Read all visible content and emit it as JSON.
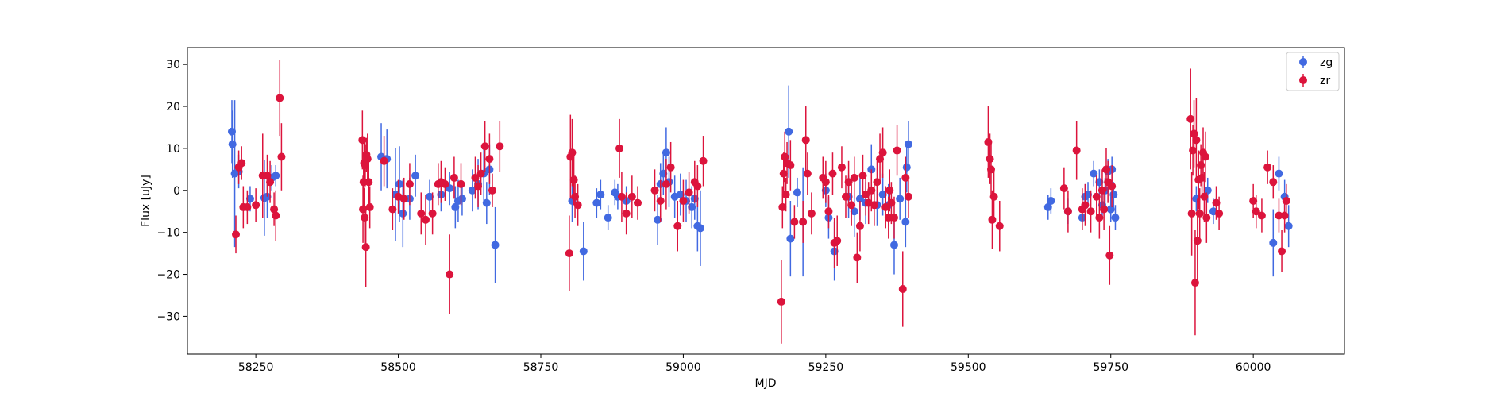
{
  "chart_data": {
    "type": "scatter",
    "title": "",
    "xlabel": "MJD",
    "ylabel": "Flux [uJy]",
    "xlim": [
      58130,
      60160
    ],
    "ylim": [
      -39,
      34
    ],
    "xticks": [
      58250,
      58500,
      58750,
      59000,
      59250,
      59500,
      59750,
      60000
    ],
    "yticks": [
      -30,
      -20,
      -10,
      0,
      10,
      20,
      30
    ],
    "xtick_labels": [
      "58250",
      "58500",
      "58750",
      "59000",
      "59250",
      "59500",
      "59750",
      "60000"
    ],
    "ytick_labels": [
      "−30",
      "−20",
      "−10",
      "0",
      "10",
      "20",
      "30"
    ],
    "grid": false,
    "legend_position": "top-right",
    "series": [
      {
        "name": "zg",
        "color": "#4169e1",
        "points": [
          [
            58208,
            14,
            7.5
          ],
          [
            58209,
            11,
            8
          ],
          [
            58213,
            4,
            17.5
          ],
          [
            58220,
            4.5,
            4
          ],
          [
            58240,
            -2,
            3
          ],
          [
            58265,
            -1.8,
            9
          ],
          [
            58270,
            -1.5,
            5
          ],
          [
            58278,
            3,
            3
          ],
          [
            58285,
            3.5,
            2.5
          ],
          [
            58470,
            8,
            8
          ],
          [
            58480,
            7.5,
            7
          ],
          [
            58495,
            -1,
            11
          ],
          [
            58502,
            1.5,
            9
          ],
          [
            58508,
            -5.5,
            8
          ],
          [
            58520,
            -2,
            5
          ],
          [
            58530,
            3.5,
            5
          ],
          [
            58555,
            -1.5,
            4
          ],
          [
            58575,
            -1,
            4
          ],
          [
            58590,
            0.5,
            4
          ],
          [
            58600,
            -4,
            5
          ],
          [
            58605,
            -2.5,
            5
          ],
          [
            58612,
            -2,
            4
          ],
          [
            58630,
            0,
            5
          ],
          [
            58640,
            1.5,
            6
          ],
          [
            58650,
            4,
            7
          ],
          [
            58655,
            -3,
            5
          ],
          [
            58660,
            5,
            6
          ],
          [
            58670,
            -13,
            9
          ],
          [
            58805,
            -2.5,
            5
          ],
          [
            58825,
            -14.5,
            7
          ],
          [
            58848,
            -3,
            3.5
          ],
          [
            58855,
            -1,
            3.5
          ],
          [
            58868,
            -6.5,
            3
          ],
          [
            58880,
            -0.5,
            3
          ],
          [
            58885,
            -1.5,
            3
          ],
          [
            58900,
            -2.5,
            3.5
          ],
          [
            58955,
            -7,
            6
          ],
          [
            58960,
            1.5,
            5
          ],
          [
            58965,
            4,
            5
          ],
          [
            58970,
            9,
            6
          ],
          [
            58975,
            2,
            6
          ],
          [
            58985,
            -1.5,
            5
          ],
          [
            58995,
            -1,
            5
          ],
          [
            59005,
            -2.5,
            5
          ],
          [
            59015,
            -4,
            5
          ],
          [
            59020,
            -2,
            5
          ],
          [
            59025,
            -8.5,
            6
          ],
          [
            59030,
            -9,
            9
          ],
          [
            59185,
            14,
            11
          ],
          [
            59188,
            -11.5,
            9
          ],
          [
            59200,
            -0.5,
            3.5
          ],
          [
            59210,
            -7.5,
            13
          ],
          [
            59250,
            0,
            4
          ],
          [
            59255,
            -6.5,
            5
          ],
          [
            59265,
            -14.5,
            7
          ],
          [
            59290,
            -1.5,
            5
          ],
          [
            59300,
            -5,
            6
          ],
          [
            59310,
            -2,
            5
          ],
          [
            59320,
            -3,
            5
          ],
          [
            59330,
            5,
            6
          ],
          [
            59340,
            -3.5,
            5
          ],
          [
            59350,
            -1,
            5
          ],
          [
            59360,
            -3.5,
            5
          ],
          [
            59370,
            -13,
            7
          ],
          [
            59380,
            -2,
            5
          ],
          [
            59390,
            -7.5,
            6
          ],
          [
            59392,
            5.5,
            6
          ],
          [
            59395,
            11,
            5.5
          ],
          [
            59640,
            -4,
            3
          ],
          [
            59645,
            -2.5,
            3
          ],
          [
            59675,
            -5,
            3
          ],
          [
            59700,
            -6.5,
            3
          ],
          [
            59705,
            -1.5,
            3
          ],
          [
            59710,
            -1,
            3
          ],
          [
            59720,
            4,
            3
          ],
          [
            59730,
            2,
            3
          ],
          [
            59735,
            -3.5,
            3
          ],
          [
            59740,
            0,
            3
          ],
          [
            59745,
            4.5,
            3
          ],
          [
            59750,
            -4.5,
            3
          ],
          [
            59752,
            5,
            3
          ],
          [
            59755,
            -1,
            3
          ],
          [
            59758,
            -6.5,
            3
          ],
          [
            59900,
            -2,
            3
          ],
          [
            59920,
            0,
            3
          ],
          [
            59930,
            -5,
            3
          ],
          [
            60035,
            -12.5,
            8
          ],
          [
            60045,
            4,
            4
          ],
          [
            60055,
            -1.5,
            4
          ],
          [
            60062,
            -8.5,
            5
          ]
        ]
      },
      {
        "name": "zr",
        "color": "#dc143c",
        "points": [
          [
            58215,
            -10.5,
            4.5
          ],
          [
            58220,
            5.5,
            4
          ],
          [
            58225,
            6.5,
            4
          ],
          [
            58228,
            -4,
            5
          ],
          [
            58235,
            -4,
            4
          ],
          [
            58250,
            -3.5,
            4
          ],
          [
            58262,
            3.5,
            10
          ],
          [
            58270,
            3.5,
            5
          ],
          [
            58275,
            2,
            5
          ],
          [
            58282,
            -4.5,
            4
          ],
          [
            58285,
            -6,
            6
          ],
          [
            58292,
            22,
            9
          ],
          [
            58295,
            8,
            8
          ],
          [
            58437,
            12,
            7
          ],
          [
            58438,
            -4.5,
            8
          ],
          [
            58439,
            2,
            7
          ],
          [
            58440,
            6.5,
            5
          ],
          [
            58441,
            -6.5,
            7
          ],
          [
            58442,
            6,
            5
          ],
          [
            58443,
            -13.5,
            9.5
          ],
          [
            58444,
            8.5,
            4
          ],
          [
            58446,
            7.5,
            6
          ],
          [
            58448,
            2,
            6
          ],
          [
            58450,
            -4,
            5
          ],
          [
            58475,
            7,
            6
          ],
          [
            58490,
            -4.5,
            5
          ],
          [
            58500,
            -1.5,
            4
          ],
          [
            58510,
            -2,
            5
          ],
          [
            58520,
            1.5,
            5
          ],
          [
            58540,
            -5.5,
            5
          ],
          [
            58548,
            -7,
            6
          ],
          [
            58560,
            -5.5,
            5
          ],
          [
            58570,
            1.5,
            5
          ],
          [
            58575,
            2,
            5
          ],
          [
            58582,
            1.5,
            4
          ],
          [
            58590,
            -20,
            9.5
          ],
          [
            58598,
            3,
            5
          ],
          [
            58610,
            1.5,
            5
          ],
          [
            58635,
            3,
            5
          ],
          [
            58640,
            1,
            5
          ],
          [
            58645,
            4,
            5
          ],
          [
            58652,
            10.5,
            6
          ],
          [
            58660,
            7.5,
            6
          ],
          [
            58665,
            0,
            4
          ],
          [
            58678,
            10.5,
            6
          ],
          [
            58800,
            -15,
            9
          ],
          [
            58802,
            8,
            10
          ],
          [
            58805,
            9,
            8
          ],
          [
            58808,
            2.5,
            6
          ],
          [
            58810,
            -1.5,
            5
          ],
          [
            58815,
            -3.5,
            5
          ],
          [
            58888,
            10,
            7
          ],
          [
            58892,
            -1.5,
            6
          ],
          [
            58900,
            -5.5,
            5
          ],
          [
            58910,
            -1.5,
            5
          ],
          [
            58920,
            -3,
            4
          ],
          [
            58950,
            0,
            5
          ],
          [
            58960,
            -2.5,
            5
          ],
          [
            58970,
            1.5,
            6
          ],
          [
            58978,
            5.5,
            6
          ],
          [
            58990,
            -8.5,
            6
          ],
          [
            59000,
            -2.5,
            5
          ],
          [
            59010,
            -0.5,
            5
          ],
          [
            59020,
            2,
            5
          ],
          [
            59025,
            1,
            5
          ],
          [
            59035,
            7,
            6
          ],
          [
            59172,
            -26.5,
            10
          ],
          [
            59174,
            -4,
            5
          ],
          [
            59176,
            4,
            5
          ],
          [
            59178,
            8,
            6
          ],
          [
            59180,
            -1,
            4
          ],
          [
            59182,
            6.5,
            5
          ],
          [
            59188,
            6,
            6
          ],
          [
            59195,
            -7.5,
            4
          ],
          [
            59210,
            -7.5,
            5
          ],
          [
            59215,
            12,
            8
          ],
          [
            59218,
            4,
            5
          ],
          [
            59225,
            -5.5,
            5
          ],
          [
            59245,
            3,
            5
          ],
          [
            59250,
            2,
            5
          ],
          [
            59255,
            -5,
            4
          ],
          [
            59262,
            4,
            5
          ],
          [
            59265,
            -12.5,
            6
          ],
          [
            59270,
            -12,
            6
          ],
          [
            59278,
            5.5,
            5
          ],
          [
            59285,
            -1.5,
            5
          ],
          [
            59290,
            2,
            5
          ],
          [
            59295,
            -3.5,
            5
          ],
          [
            59300,
            3,
            5
          ],
          [
            59305,
            -16,
            6
          ],
          [
            59310,
            -8.5,
            6
          ],
          [
            59315,
            3.5,
            5
          ],
          [
            59320,
            -1,
            5
          ],
          [
            59325,
            -3,
            5
          ],
          [
            59330,
            0,
            5
          ],
          [
            59335,
            -3.5,
            5
          ],
          [
            59340,
            2,
            5
          ],
          [
            59345,
            7.5,
            6
          ],
          [
            59350,
            9,
            6
          ],
          [
            59355,
            -4,
            5
          ],
          [
            59360,
            -6.5,
            5
          ],
          [
            59362,
            0,
            5
          ],
          [
            59365,
            -3,
            5
          ],
          [
            59370,
            -6.5,
            5
          ],
          [
            59375,
            9.5,
            6
          ],
          [
            59385,
            -23.5,
            9
          ],
          [
            59390,
            3,
            5
          ],
          [
            59395,
            -1.5,
            5
          ],
          [
            59535,
            11.5,
            8.5
          ],
          [
            59538,
            7.5,
            6
          ],
          [
            59540,
            5,
            7
          ],
          [
            59542,
            -7,
            7
          ],
          [
            59545,
            -1.5,
            6
          ],
          [
            59555,
            -8.5,
            6
          ],
          [
            59668,
            0.5,
            5
          ],
          [
            59675,
            -5,
            5
          ],
          [
            59690,
            9.5,
            7
          ],
          [
            59700,
            -4.5,
            5
          ],
          [
            59705,
            -3.5,
            5
          ],
          [
            59715,
            -5,
            5
          ],
          [
            59725,
            -1.5,
            5
          ],
          [
            59730,
            -6.5,
            5
          ],
          [
            59735,
            0,
            5
          ],
          [
            59738,
            -4.5,
            5
          ],
          [
            59742,
            5,
            5
          ],
          [
            59745,
            2,
            5
          ],
          [
            59748,
            -15.5,
            7
          ],
          [
            59752,
            1,
            5
          ],
          [
            59890,
            17,
            12
          ],
          [
            59892,
            -5.5,
            10
          ],
          [
            59894,
            9.5,
            6
          ],
          [
            59896,
            13.5,
            8
          ],
          [
            59898,
            -22,
            12.5
          ],
          [
            59900,
            12,
            10
          ],
          [
            59902,
            -12,
            10
          ],
          [
            59904,
            2.5,
            7
          ],
          [
            59906,
            -5.5,
            6
          ],
          [
            59908,
            6,
            5
          ],
          [
            59910,
            3,
            5
          ],
          [
            59912,
            9,
            6
          ],
          [
            59914,
            -1.5,
            6
          ],
          [
            59916,
            8,
            6
          ],
          [
            59918,
            -6.5,
            6
          ],
          [
            59935,
            -3,
            4
          ],
          [
            59940,
            -5.5,
            4
          ],
          [
            60000,
            -2.5,
            4
          ],
          [
            60005,
            -5,
            4
          ],
          [
            60015,
            -6,
            4
          ],
          [
            60025,
            5.5,
            4
          ],
          [
            60035,
            2,
            4
          ],
          [
            60045,
            -6,
            4
          ],
          [
            60050,
            -14.5,
            5
          ],
          [
            60055,
            -6,
            4
          ],
          [
            60058,
            -2.5,
            4
          ]
        ]
      }
    ]
  }
}
